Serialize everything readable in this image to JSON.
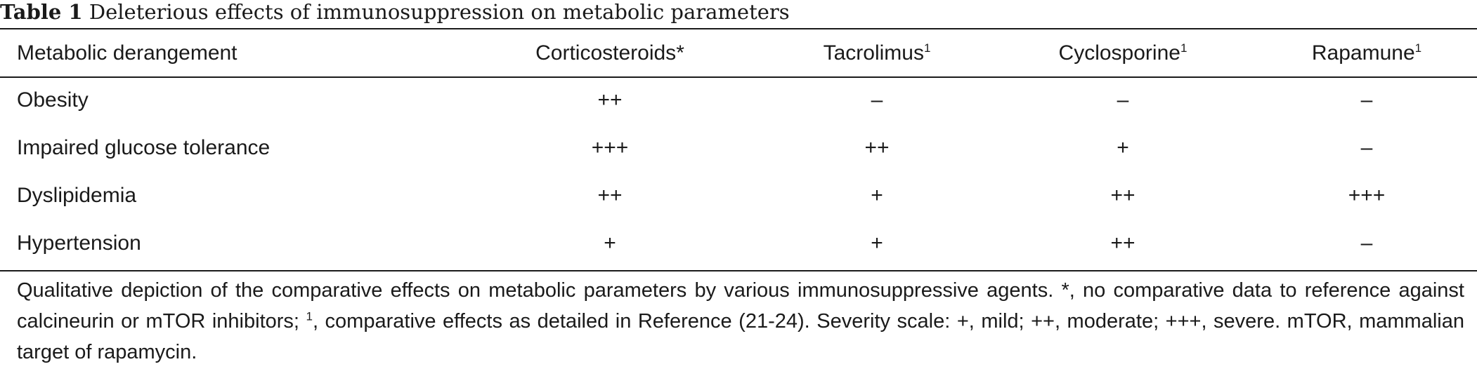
{
  "caption": {
    "label": "Table 1",
    "title": "Deleterious effects of immunosuppression on metabolic parameters"
  },
  "table": {
    "headers": [
      {
        "text": "Metabolic derangement",
        "mark": ""
      },
      {
        "text": "Corticosteroids",
        "mark": "*"
      },
      {
        "text": "Tacrolimus",
        "mark": "1"
      },
      {
        "text": "Cyclosporine",
        "mark": "1"
      },
      {
        "text": "Rapamune",
        "mark": "1"
      }
    ],
    "rows": [
      [
        "Obesity",
        "++",
        "–",
        "–",
        "–"
      ],
      [
        "Impaired glucose tolerance",
        "+++",
        "++",
        "+",
        "–"
      ],
      [
        "Dyslipidemia",
        "++",
        "+",
        "++",
        "+++"
      ],
      [
        "Hypertension",
        "+",
        "+",
        "++",
        "–"
      ]
    ]
  },
  "footnote": {
    "part1": "Qualitative depiction of the comparative effects on metabolic parameters by various immunosuppressive agents. *, no comparative data to reference against calcineurin or mTOR inhibitors; ",
    "mark": "1",
    "part2": ", comparative effects as detailed in Reference (21-24). Severity scale: +, mild; ++, moderate; +++, severe.  mTOR, mammalian target of rapamycin."
  }
}
